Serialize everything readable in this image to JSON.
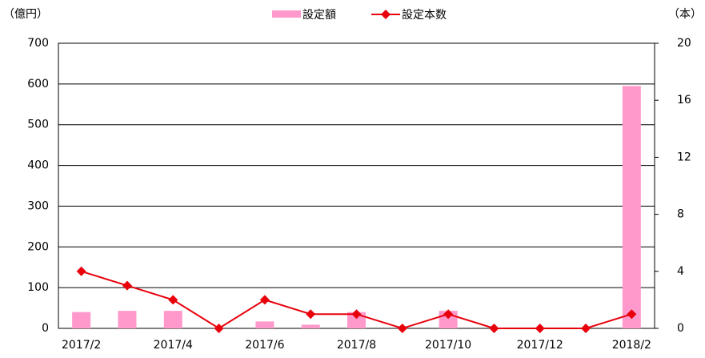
{
  "chart_data": {
    "type": "bar-line",
    "y_label": "（億円）",
    "y2_label": "（本）",
    "categories": [
      "2017/2",
      null,
      "2017/4",
      null,
      "2017/6",
      null,
      "2017/8",
      null,
      "2017/10",
      null,
      "2017/12",
      null,
      "2018/2"
    ],
    "series": [
      {
        "name": "設定額",
        "type": "bar",
        "color": "#ff99cc",
        "values": [
          40,
          43,
          43,
          0,
          17,
          9,
          40,
          0,
          43,
          0,
          0,
          0,
          595
        ]
      },
      {
        "name": "設定本数",
        "type": "line",
        "axis": "y2",
        "color": "#e8000b",
        "values": [
          4,
          3,
          2,
          0,
          2,
          1,
          1,
          0,
          1,
          0,
          0,
          0,
          1
        ]
      }
    ],
    "ylim": [
      0,
      700
    ],
    "yticks": [
      0,
      100,
      200,
      300,
      400,
      500,
      600,
      700
    ],
    "y2lim": [
      0,
      20
    ],
    "y2ticks": [
      0,
      4,
      8,
      12,
      16,
      20
    ],
    "grid": true
  }
}
